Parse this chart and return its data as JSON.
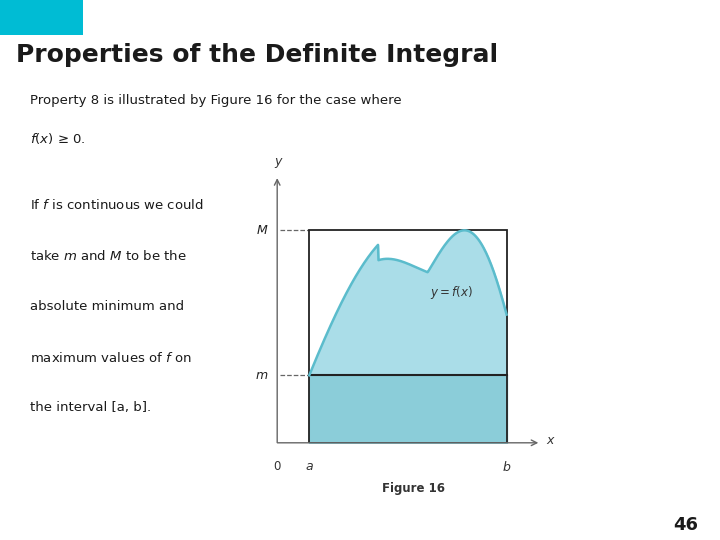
{
  "title": "Properties of the Definite Integral",
  "title_bg_color": "#ece8d8",
  "title_highlight_color": "#00bcd4",
  "title_text_color": "#1a1a1a",
  "slide_bg_color": "#ffffff",
  "header_text1": "Property 8 is illustrated by Figure 16 for the case where",
  "header_text2": "f(x) ≥ 0.",
  "body_text_lines": [
    "If $f$ is continuous we could",
    "take $m$ and $M$ to be the",
    "absolute minimum and",
    "maximum values of $f$ on",
    "the interval [a, b]."
  ],
  "figure_caption": "Figure 16",
  "page_number": "46",
  "curve_color": "#5bbccc",
  "fill_color": "#aadde8",
  "m_fill_color": "#88ccd8",
  "axis_color": "#666666",
  "rect_outline_color": "#222222",
  "m_value": 0.27,
  "M_value": 0.85,
  "a_value": 0.13,
  "b_value": 0.93
}
